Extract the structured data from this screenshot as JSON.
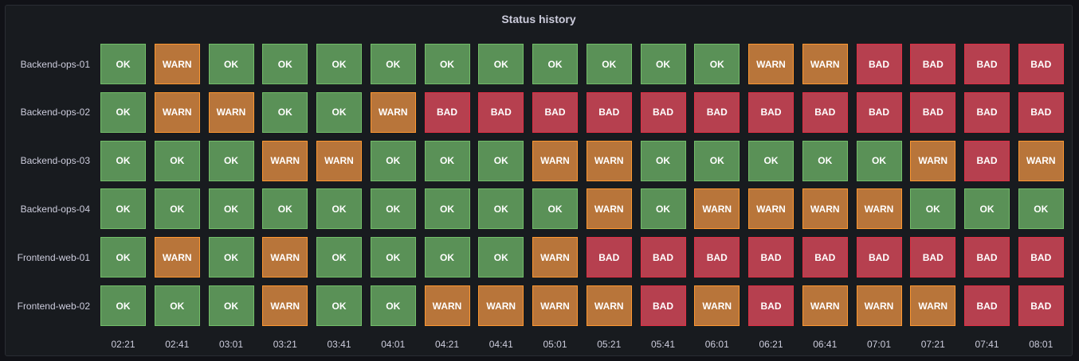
{
  "panel": {
    "title": "Status history"
  },
  "chart_data": {
    "type": "heatmap",
    "title": "Status history",
    "rows": [
      "Backend-ops-01",
      "Backend-ops-02",
      "Backend-ops-03",
      "Backend-ops-04",
      "Frontend-web-01",
      "Frontend-web-02"
    ],
    "x": [
      "02:21",
      "02:41",
      "03:01",
      "03:21",
      "03:41",
      "04:01",
      "04:21",
      "04:41",
      "05:01",
      "05:21",
      "05:41",
      "06:01",
      "06:21",
      "06:41",
      "07:01",
      "07:21",
      "07:41",
      "08:01"
    ],
    "values": [
      [
        "OK",
        "WARN",
        "OK",
        "OK",
        "OK",
        "OK",
        "OK",
        "OK",
        "OK",
        "OK",
        "OK",
        "OK",
        "WARN",
        "WARN",
        "BAD",
        "BAD",
        "BAD",
        "BAD"
      ],
      [
        "OK",
        "WARN",
        "WARN",
        "OK",
        "OK",
        "WARN",
        "BAD",
        "BAD",
        "BAD",
        "BAD",
        "BAD",
        "BAD",
        "BAD",
        "BAD",
        "BAD",
        "BAD",
        "BAD",
        "BAD"
      ],
      [
        "OK",
        "OK",
        "OK",
        "WARN",
        "WARN",
        "OK",
        "OK",
        "OK",
        "WARN",
        "WARN",
        "OK",
        "OK",
        "OK",
        "OK",
        "OK",
        "WARN",
        "BAD",
        "WARN"
      ],
      [
        "OK",
        "OK",
        "OK",
        "OK",
        "OK",
        "OK",
        "OK",
        "OK",
        "OK",
        "WARN",
        "OK",
        "WARN",
        "WARN",
        "WARN",
        "WARN",
        "OK",
        "OK",
        "OK"
      ],
      [
        "OK",
        "WARN",
        "OK",
        "WARN",
        "OK",
        "OK",
        "OK",
        "OK",
        "WARN",
        "BAD",
        "BAD",
        "BAD",
        "BAD",
        "BAD",
        "BAD",
        "BAD",
        "BAD",
        "BAD"
      ],
      [
        "OK",
        "OK",
        "OK",
        "WARN",
        "OK",
        "OK",
        "WARN",
        "WARN",
        "WARN",
        "WARN",
        "BAD",
        "WARN",
        "BAD",
        "WARN",
        "WARN",
        "WARN",
        "BAD",
        "BAD"
      ]
    ],
    "colors": {
      "OK": "#5a9157",
      "WARN": "#b8753a",
      "BAD": "#b6404f"
    }
  }
}
